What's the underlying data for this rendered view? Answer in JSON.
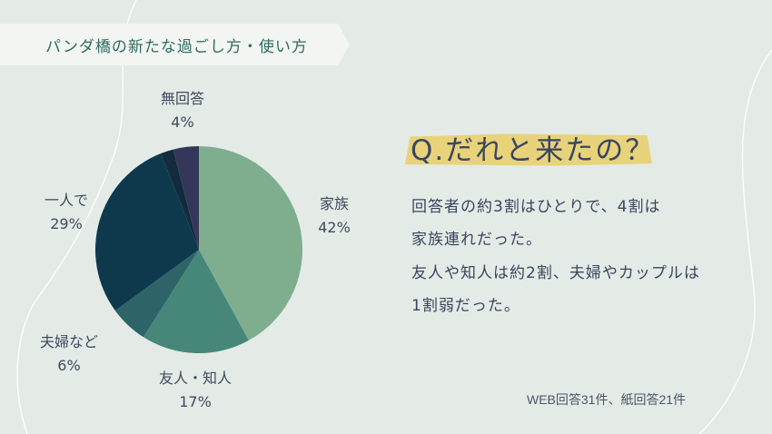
{
  "header": {
    "tag_text": "パンダ橋の新たな過ごし方・使い方"
  },
  "question": {
    "title": "Q.だれと来たの？"
  },
  "answer_lines": [
    "回答者の約3割はひとりで、4割は",
    "家族連れだった。",
    "友人や知人は約2割、夫婦やカップルは",
    "1割弱だった。"
  ],
  "source_note": "WEB回答31件、紙回答21件",
  "chart_data": {
    "type": "pie",
    "title": "",
    "slices": [
      {
        "name": "家族",
        "label": "42%",
        "value": 42,
        "color": "#7fae8e"
      },
      {
        "name": "友人・知人",
        "label": "17%",
        "value": 17,
        "color": "#478779"
      },
      {
        "name": "夫婦など",
        "label": "6%",
        "value": 6,
        "color": "#2e6468"
      },
      {
        "name": "一人で",
        "label": "29%",
        "value": 29,
        "color": "#0e394c"
      },
      {
        "name": "",
        "label": "",
        "value": 2,
        "color": "#122b3e"
      },
      {
        "name": "無回答",
        "label": "4%",
        "value": 4,
        "color": "#34365a"
      }
    ]
  },
  "colors": {
    "background": "#e4ebe6",
    "tag_background": "#f2f5f2",
    "tag_text": "#2f6b5e",
    "highlight": "#e8d27a",
    "text": "#3a4660"
  }
}
